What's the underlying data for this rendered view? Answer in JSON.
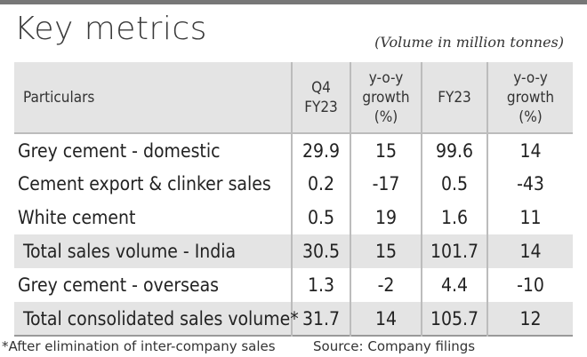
{
  "title": "Key metrics",
  "unit_note": "(Volume in million tonnes)",
  "chart_data": {
    "type": "table",
    "title": "Key metrics",
    "header": {
      "particulars": "Particulars",
      "columns": [
        {
          "lines": [
            "Q4",
            "FY23"
          ]
        },
        {
          "lines": [
            "y-o-y",
            "growth",
            "(%)"
          ]
        },
        {
          "lines": [
            "FY23"
          ]
        },
        {
          "lines": [
            "y-o-y",
            "growth",
            "(%)"
          ]
        }
      ]
    },
    "rows": [
      {
        "label": "Grey cement - domestic",
        "values": [
          "29.9",
          "15",
          "99.6",
          "14"
        ],
        "shaded": false
      },
      {
        "label": "Cement export & clinker sales",
        "values": [
          "0.2",
          "-17",
          "0.5",
          "-43"
        ],
        "shaded": false
      },
      {
        "label": "White cement",
        "values": [
          "0.5",
          "19",
          "1.6",
          "11"
        ],
        "shaded": false
      },
      {
        "label": "Total sales volume - India",
        "values": [
          "30.5",
          "15",
          "101.7",
          "14"
        ],
        "shaded": true
      },
      {
        "label": "Grey cement - overseas",
        "values": [
          "1.3",
          "-2",
          "4.4",
          "-10"
        ],
        "shaded": false
      },
      {
        "label": "Total consolidated sales volume*",
        "values": [
          "31.7",
          "14",
          "105.7",
          "12"
        ],
        "shaded": true
      }
    ]
  },
  "footnote": "*After elimination of inter-company sales",
  "source": "Source: Company filings"
}
